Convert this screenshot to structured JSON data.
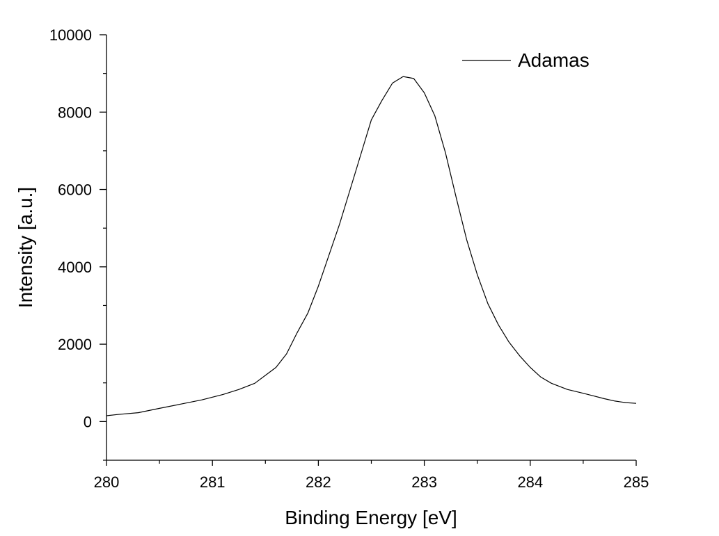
{
  "chart_data": {
    "type": "line",
    "xlabel": "Binding Energy [eV]",
    "ylabel": "Intensity [a.u.]",
    "xlim": [
      280,
      285
    ],
    "ylim": [
      -1000,
      10000
    ],
    "x_ticks": [
      "280",
      "281",
      "282",
      "283",
      "284",
      "285"
    ],
    "y_ticks": [
      "0",
      "2000",
      "4000",
      "6000",
      "8000",
      "10000"
    ],
    "x_tick_values": [
      280,
      281,
      282,
      283,
      284,
      285
    ],
    "y_tick_values": [
      0,
      2000,
      4000,
      6000,
      8000,
      10000
    ],
    "grid": false,
    "legend_position": "top-right",
    "series": [
      {
        "name": "Adamas",
        "color": "#000000",
        "x": [
          280.0,
          280.1,
          280.3,
          280.5,
          280.7,
          280.9,
          281.1,
          281.25,
          281.4,
          281.6,
          281.7,
          281.8,
          281.9,
          282.0,
          282.1,
          282.2,
          282.3,
          282.4,
          282.5,
          282.6,
          282.7,
          282.8,
          282.9,
          283.0,
          283.1,
          283.2,
          283.3,
          283.4,
          283.5,
          283.6,
          283.7,
          283.8,
          283.9,
          284.0,
          284.1,
          284.2,
          284.35,
          284.5,
          284.6,
          284.7,
          284.8,
          284.9,
          285.0
        ],
        "y": [
          150,
          180,
          230,
          340,
          450,
          560,
          700,
          830,
          990,
          1400,
          1750,
          2300,
          2800,
          3500,
          4300,
          5100,
          6000,
          6900,
          7800,
          8300,
          8750,
          8920,
          8870,
          8500,
          7900,
          6950,
          5800,
          4700,
          3800,
          3050,
          2500,
          2050,
          1700,
          1400,
          1150,
          990,
          830,
          730,
          660,
          590,
          530,
          490,
          470
        ]
      }
    ]
  }
}
